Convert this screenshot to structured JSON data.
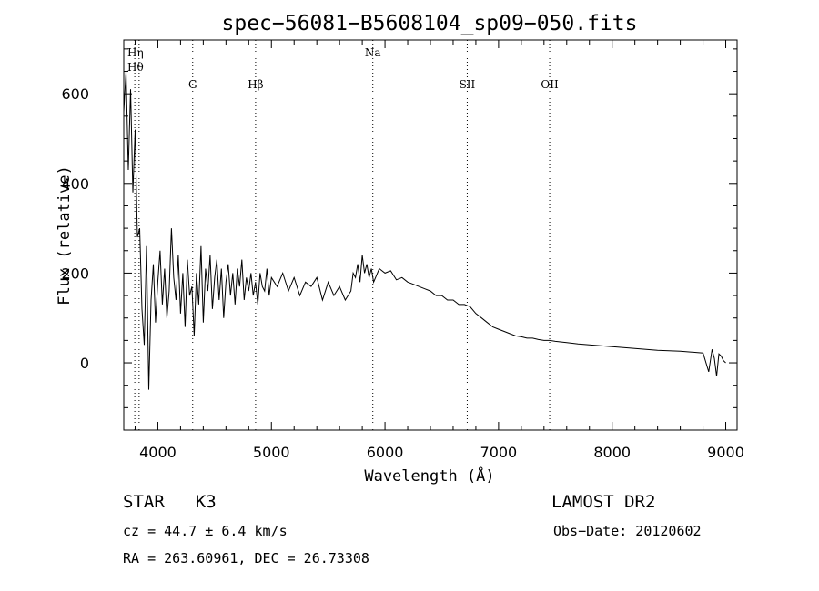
{
  "chart_data": {
    "type": "line",
    "title": "spec−56081−B5608104_sp09−050.fits",
    "xlabel": "Wavelength (Å)",
    "ylabel": "Flux (relative)",
    "xlim": [
      3700,
      9100
    ],
    "ylim": [
      -150,
      720
    ],
    "xticks": [
      4000,
      5000,
      6000,
      7000,
      8000,
      9000
    ],
    "yticks": [
      0,
      200,
      400,
      600
    ],
    "grid": false,
    "series": [
      {
        "x": [
          3700,
          3720,
          3740,
          3760,
          3780,
          3800,
          3820,
          3840,
          3860,
          3880,
          3900,
          3920,
          3940,
          3960,
          3980,
          4000,
          4020,
          4040,
          4060,
          4080,
          4100,
          4120,
          4140,
          4160,
          4180,
          4200,
          4220,
          4240,
          4260,
          4280,
          4300,
          4320,
          4340,
          4360,
          4380,
          4400,
          4420,
          4440,
          4460,
          4480,
          4500,
          4520,
          4540,
          4560,
          4580,
          4600,
          4620,
          4640,
          4660,
          4680,
          4700,
          4720,
          4740,
          4760,
          4780,
          4800,
          4820,
          4840,
          4860,
          4880,
          4900,
          4920,
          4940,
          4960,
          4980,
          5000,
          5050,
          5100,
          5150,
          5200,
          5250,
          5300,
          5350,
          5400,
          5450,
          5500,
          5550,
          5600,
          5650,
          5700,
          5720,
          5740,
          5760,
          5780,
          5800,
          5820,
          5840,
          5860,
          5880,
          5900,
          5950,
          6000,
          6050,
          6100,
          6150,
          6200,
          6250,
          6300,
          6350,
          6400,
          6450,
          6500,
          6550,
          6600,
          6650,
          6700,
          6750,
          6800,
          6850,
          6900,
          6950,
          7000,
          7050,
          7100,
          7150,
          7200,
          7250,
          7300,
          7350,
          7400,
          7450,
          7500,
          7600,
          7700,
          7800,
          7900,
          8000,
          8100,
          8200,
          8300,
          8400,
          8500,
          8600,
          8700,
          8800,
          8850,
          8880,
          8900,
          8920,
          8940,
          8960,
          8980,
          9000
        ],
        "y": [
          560,
          650,
          430,
          610,
          380,
          520,
          280,
          300,
          120,
          40,
          260,
          -60,
          140,
          220,
          90,
          180,
          250,
          130,
          210,
          100,
          160,
          300,
          190,
          140,
          240,
          110,
          200,
          80,
          230,
          150,
          170,
          60,
          200,
          130,
          260,
          90,
          210,
          160,
          240,
          120,
          190,
          230,
          140,
          210,
          100,
          180,
          220,
          150,
          200,
          130,
          210,
          170,
          230,
          140,
          190,
          160,
          200,
          150,
          180,
          130,
          200,
          170,
          160,
          210,
          150,
          190,
          170,
          200,
          160,
          190,
          150,
          180,
          170,
          190,
          140,
          180,
          150,
          170,
          140,
          160,
          200,
          190,
          220,
          180,
          240,
          200,
          220,
          190,
          210,
          180,
          210,
          200,
          205,
          185,
          190,
          180,
          175,
          170,
          165,
          160,
          150,
          150,
          140,
          140,
          130,
          130,
          125,
          110,
          100,
          90,
          80,
          75,
          70,
          65,
          60,
          58,
          55,
          55,
          52,
          50,
          50,
          48,
          45,
          42,
          40,
          38,
          36,
          34,
          32,
          30,
          28,
          27,
          26,
          24,
          22,
          -20,
          30,
          10,
          -30,
          20,
          15,
          5,
          0
        ]
      }
    ],
    "line_markers": [
      {
        "label": "Hη",
        "x": 3835
      },
      {
        "label": "Hθ",
        "x": 3797
      },
      {
        "label": "G",
        "x": 4307
      },
      {
        "label": "Hβ",
        "x": 4861
      },
      {
        "label": "Na",
        "x": 5893
      },
      {
        "label": "SII",
        "x": 6724
      },
      {
        "label": "OII",
        "x": 7450
      }
    ]
  },
  "info": {
    "object_class": "STAR",
    "subclass": "K3",
    "survey": "LAMOST DR2",
    "cz": "cz = 44.7 ± 6.4 km/s",
    "obs_date": "Obs−Date: 20120602",
    "coords": "RA = 263.60961, DEC =  26.73308"
  }
}
